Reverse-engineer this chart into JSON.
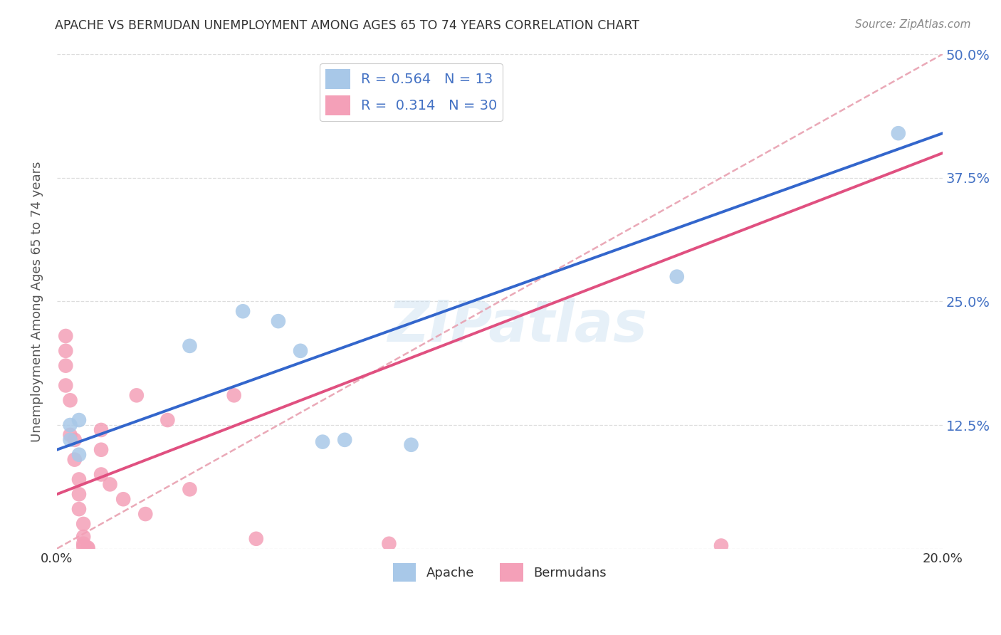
{
  "title": "APACHE VS BERMUDAN UNEMPLOYMENT AMONG AGES 65 TO 74 YEARS CORRELATION CHART",
  "source": "Source: ZipAtlas.com",
  "ylabel": "Unemployment Among Ages 65 to 74 years",
  "xlim": [
    0,
    0.2
  ],
  "ylim": [
    0,
    0.5
  ],
  "apache_R": 0.564,
  "apache_N": 13,
  "bermudan_R": 0.314,
  "bermudan_N": 30,
  "apache_color": "#A8C8E8",
  "bermudan_color": "#F4A0B8",
  "apache_line_color": "#3366CC",
  "bermudan_line_color": "#E05080",
  "ref_line_color": "#E8A0B0",
  "background_color": "#FFFFFF",
  "grid_color": "#DDDDDD",
  "title_color": "#333333",
  "axis_label_color": "#555555",
  "tick_label_color_right": "#4472C4",
  "watermark": "ZIPatlas",
  "apache_line_x0": 0.0,
  "apache_line_y0": 0.1,
  "apache_line_x1": 0.2,
  "apache_line_y1": 0.42,
  "bermudan_line_x0": 0.0,
  "bermudan_line_y0": 0.055,
  "bermudan_line_x1": 0.2,
  "bermudan_line_y1": 0.4,
  "ref_line_x0": 0.0,
  "ref_line_y0": 0.0,
  "ref_line_x1": 0.2,
  "ref_line_y1": 0.5,
  "apache_points": [
    [
      0.003,
      0.125
    ],
    [
      0.003,
      0.11
    ],
    [
      0.005,
      0.13
    ],
    [
      0.005,
      0.095
    ],
    [
      0.03,
      0.205
    ],
    [
      0.042,
      0.24
    ],
    [
      0.05,
      0.23
    ],
    [
      0.055,
      0.2
    ],
    [
      0.06,
      0.108
    ],
    [
      0.065,
      0.11
    ],
    [
      0.08,
      0.105
    ],
    [
      0.14,
      0.275
    ],
    [
      0.19,
      0.42
    ]
  ],
  "bermudan_points": [
    [
      0.002,
      0.215
    ],
    [
      0.002,
      0.2
    ],
    [
      0.002,
      0.185
    ],
    [
      0.002,
      0.165
    ],
    [
      0.003,
      0.15
    ],
    [
      0.003,
      0.115
    ],
    [
      0.004,
      0.11
    ],
    [
      0.004,
      0.09
    ],
    [
      0.005,
      0.07
    ],
    [
      0.005,
      0.055
    ],
    [
      0.005,
      0.04
    ],
    [
      0.006,
      0.025
    ],
    [
      0.006,
      0.012
    ],
    [
      0.006,
      0.005
    ],
    [
      0.006,
      0.002
    ],
    [
      0.007,
      0.001
    ],
    [
      0.007,
      0.0
    ],
    [
      0.01,
      0.12
    ],
    [
      0.01,
      0.1
    ],
    [
      0.01,
      0.075
    ],
    [
      0.012,
      0.065
    ],
    [
      0.015,
      0.05
    ],
    [
      0.018,
      0.155
    ],
    [
      0.02,
      0.035
    ],
    [
      0.025,
      0.13
    ],
    [
      0.03,
      0.06
    ],
    [
      0.04,
      0.155
    ],
    [
      0.045,
      0.01
    ],
    [
      0.075,
      0.005
    ],
    [
      0.15,
      0.003
    ]
  ]
}
